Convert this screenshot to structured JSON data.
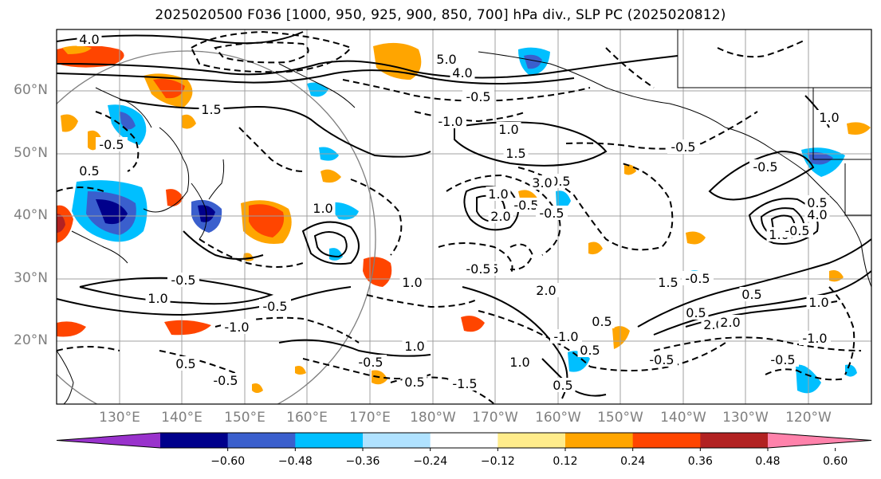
{
  "title": "2025020500 F036 [1000, 950, 925, 900, 850, 700] hPa div., SLP PC (2025020812)",
  "lat_labels": [
    "60°N",
    "50°N",
    "40°N",
    "30°N",
    "20°N"
  ],
  "lon_labels": [
    "130°E",
    "140°E",
    "150°E",
    "160°E",
    "170°E",
    "180°W",
    "170°W",
    "160°W",
    "150°W",
    "140°W",
    "130°W",
    "120°W"
  ],
  "colorbar": {
    "colors": [
      "#9932cc",
      "#00008b",
      "#3a5fcd",
      "#00bfff",
      "#b0e2ff",
      "#ffffff",
      "#ffec8b",
      "#ffa500",
      "#ff4500",
      "#b22222",
      "#ff82ab"
    ],
    "ticks": [
      "−0.60",
      "−0.48",
      "−0.36",
      "−0.24",
      "−0.12",
      "0.12",
      "0.24",
      "0.36",
      "0.48",
      "0.60"
    ]
  },
  "contour_labels": [
    "4.0",
    "1.5",
    "0.5",
    "-0.5",
    "1.0",
    "-1.0",
    "5.0",
    "4.0",
    "-0.5",
    "-1.0",
    "1.5",
    "1.0",
    "-0.5",
    "1.0",
    "-0.5",
    "-0.5",
    "2.0",
    "1.0",
    "-0.5",
    "-0.5",
    "1.0",
    "-0.5",
    "4.0",
    "3.0",
    "2.0",
    "-0.5",
    "0.5",
    "1.5",
    "-0.5",
    "2.0",
    "-0.5",
    "0.5",
    "0.5",
    "0.5",
    "-1.0",
    "-1.0",
    "-0.5",
    "-0.5",
    "0.5",
    "-0.5",
    "-0.5",
    "-1.0",
    "1.0",
    "0.5",
    "0.5",
    "-0.5",
    "1.0",
    "-0.5",
    "-1.5",
    "0.5",
    "1.0",
    "1.0",
    "2.0",
    "1.0"
  ]
}
